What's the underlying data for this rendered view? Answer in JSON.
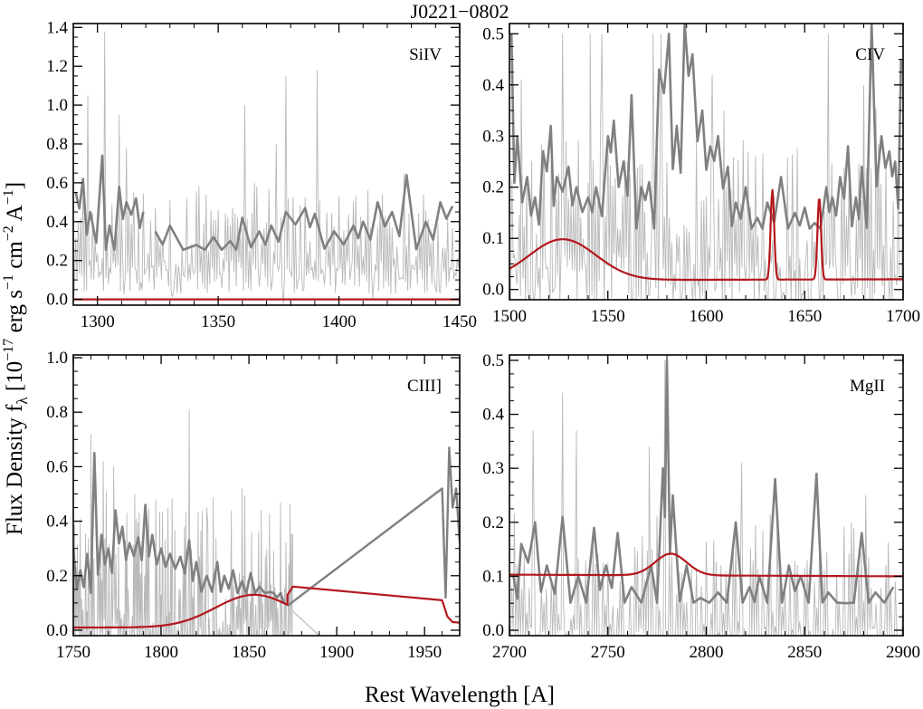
{
  "figure": {
    "title": "J0221−0802",
    "xlabel": "Rest Wavelength [A]",
    "ylabel": "Flux Density fλ [10⁻¹⁷ erg s⁻¹ cm⁻² A⁻¹]",
    "ylabel_parts": {
      "prefix": "Flux Density f",
      "lambda": "λ",
      "open": " [10",
      "e1": "−17",
      "erg": " erg s",
      "e2": "−1",
      "cm": " cm",
      "e3": "−2",
      "A": " A",
      "e4": "−1",
      "close": "]"
    }
  },
  "colors": {
    "raw_spectrum": "#b9b9b9",
    "smoothed_spectrum": "#808080",
    "model_fit": "#b3171c",
    "axes": "#000000"
  },
  "chart_data": [
    {
      "type": "line",
      "line_label": "SiIV",
      "xlim": [
        1290,
        1450
      ],
      "ylim": [
        -0.03,
        1.42
      ],
      "xticks": [
        1300,
        1350,
        1400,
        1450
      ],
      "yticks": [
        0.0,
        0.2,
        0.4,
        0.6,
        0.8,
        1.0,
        1.2,
        1.4
      ],
      "xtick_labels": [
        "1300",
        "1350",
        "1400",
        "1450"
      ],
      "ytick_labels": [
        "0.0",
        "0.2",
        "0.4",
        "0.6",
        "0.8",
        "1.0",
        "1.2",
        "1.4"
      ],
      "model": {
        "continuum": [
          [
            1290,
            0.0
          ],
          [
            1450,
            0.0
          ]
        ],
        "gaussians": []
      },
      "smoothed": {
        "baseline": 0.3,
        "peaks": [
          [
            1291,
            0.55
          ],
          [
            1294,
            0.62
          ],
          [
            1297,
            0.45
          ],
          [
            1302,
            0.74
          ],
          [
            1305,
            0.38
          ],
          [
            1309,
            0.58
          ],
          [
            1312,
            0.5
          ],
          [
            1316,
            0.52
          ],
          [
            1319,
            0.45
          ],
          [
            1324,
            0.35
          ],
          [
            1330,
            0.38
          ],
          [
            1341,
            0.28
          ],
          [
            1348,
            0.32
          ],
          [
            1355,
            0.3
          ],
          [
            1360,
            0.42
          ],
          [
            1367,
            0.35
          ],
          [
            1372,
            0.38
          ],
          [
            1378,
            0.45
          ],
          [
            1386,
            0.47
          ],
          [
            1390,
            0.44
          ],
          [
            1398,
            0.35
          ],
          [
            1406,
            0.38
          ],
          [
            1410,
            0.4
          ],
          [
            1416,
            0.5
          ],
          [
            1422,
            0.45
          ],
          [
            1428,
            0.64
          ],
          [
            1436,
            0.4
          ],
          [
            1442,
            0.5
          ],
          [
            1447,
            0.48
          ]
        ],
        "gaps": [
          [
            1320,
            1323
          ]
        ]
      },
      "raw": {
        "noise": 0.17,
        "spikes": [
          [
            1296,
            1.05
          ],
          [
            1303,
            1.38
          ],
          [
            1309,
            0.95
          ],
          [
            1312,
            0.78
          ],
          [
            1361,
            1.0
          ],
          [
            1374,
            0.8
          ],
          [
            1378,
            1.15
          ],
          [
            1391,
            1.18
          ],
          [
            1427,
            0.65
          ]
        ],
        "clip_low": -0.03
      }
    },
    {
      "type": "line",
      "line_label": "CIV",
      "xlim": [
        1500,
        1700
      ],
      "ylim": [
        -0.02,
        0.52
      ],
      "xticks": [
        1500,
        1550,
        1600,
        1650,
        1700
      ],
      "yticks": [
        0.0,
        0.1,
        0.2,
        0.3,
        0.4,
        0.5
      ],
      "xtick_labels": [
        "1500",
        "1550",
        "1600",
        "1650",
        "1700"
      ],
      "ytick_labels": [
        "0.0",
        "0.1",
        "0.2",
        "0.3",
        "0.4",
        "0.5"
      ],
      "model": {
        "continuum": [
          [
            1500,
            0.018
          ],
          [
            1700,
            0.02
          ]
        ],
        "gaussians": [
          [
            1527,
            0.08,
            17
          ],
          [
            1633.6,
            0.175,
            0.9
          ],
          [
            1657.4,
            0.16,
            0.9
          ]
        ]
      },
      "smoothed": {
        "baseline": 0.14,
        "peaks": [
          [
            1501,
            0.5
          ],
          [
            1504,
            0.3
          ],
          [
            1509,
            0.22
          ],
          [
            1513,
            0.18
          ],
          [
            1517,
            0.27
          ],
          [
            1521,
            0.32
          ],
          [
            1524,
            0.22
          ],
          [
            1530,
            0.24
          ],
          [
            1534,
            0.2
          ],
          [
            1540,
            0.18
          ],
          [
            1544,
            0.2
          ],
          [
            1550,
            0.3
          ],
          [
            1553,
            0.33
          ],
          [
            1558,
            0.25
          ],
          [
            1562,
            0.38
          ],
          [
            1567,
            0.2
          ],
          [
            1571,
            0.21
          ],
          [
            1576,
            0.43
          ],
          [
            1581,
            0.5
          ],
          [
            1585,
            0.32
          ],
          [
            1589,
            0.52
          ],
          [
            1593,
            0.46
          ],
          [
            1598,
            0.35
          ],
          [
            1602,
            0.28
          ],
          [
            1606,
            0.3
          ],
          [
            1611,
            0.24
          ],
          [
            1615,
            0.17
          ],
          [
            1620,
            0.2
          ],
          [
            1626,
            0.14
          ],
          [
            1631,
            0.17
          ],
          [
            1638,
            0.22
          ],
          [
            1645,
            0.15
          ],
          [
            1650,
            0.16
          ],
          [
            1655,
            0.13
          ],
          [
            1661,
            0.2
          ],
          [
            1664,
            0.18
          ],
          [
            1668,
            0.22
          ],
          [
            1672,
            0.28
          ],
          [
            1676,
            0.18
          ],
          [
            1679,
            0.24
          ],
          [
            1684,
            0.52
          ],
          [
            1689,
            0.3
          ],
          [
            1693,
            0.27
          ],
          [
            1696,
            0.25
          ],
          [
            1699,
            0.45
          ]
        ],
        "gaps": []
      },
      "raw": {
        "noise": 0.12,
        "spikes": [
          [
            1506,
            0.41
          ],
          [
            1527,
            0.5
          ],
          [
            1541,
            0.5
          ],
          [
            1547,
            0.5
          ],
          [
            1573,
            0.5
          ],
          [
            1577,
            0.5
          ],
          [
            1603,
            0.42
          ],
          [
            1609,
            0.35
          ],
          [
            1662,
            0.5
          ],
          [
            1680,
            0.4
          ]
        ],
        "clip_low": -0.02
      }
    },
    {
      "type": "line",
      "line_label": "CIII]",
      "xlim": [
        1750,
        1970
      ],
      "ylim": [
        -0.02,
        1.01
      ],
      "xticks": [
        1750,
        1800,
        1850,
        1900,
        1950
      ],
      "yticks": [
        0.0,
        0.2,
        0.4,
        0.6,
        0.8,
        1.0
      ],
      "xtick_labels": [
        "1750",
        "1800",
        "1850",
        "1900",
        "1950"
      ],
      "ytick_labels": [
        "0.0",
        "0.2",
        "0.4",
        "0.6",
        "0.8",
        "1.0"
      ],
      "model": {
        "continuum": [
          [
            1750,
            0.01
          ],
          [
            1970,
            0.01
          ]
        ],
        "gaussians": [
          [
            1853,
            0.12,
            22
          ]
        ],
        "polyline": [
          [
            1872,
            0.13
          ],
          [
            1875,
            0.16
          ],
          [
            1960,
            0.11
          ],
          [
            1963,
            0.05
          ],
          [
            1966,
            0.03
          ],
          [
            1970,
            0.028
          ]
        ]
      },
      "smoothed": {
        "baseline": 0.16,
        "peaks": [
          [
            1750,
            0.3
          ],
          [
            1754,
            0.22
          ],
          [
            1758,
            0.28
          ],
          [
            1762,
            0.65
          ],
          [
            1766,
            0.35
          ],
          [
            1770,
            0.3
          ],
          [
            1774,
            0.44
          ],
          [
            1778,
            0.38
          ],
          [
            1782,
            0.32
          ],
          [
            1787,
            0.34
          ],
          [
            1791,
            0.46
          ],
          [
            1795,
            0.35
          ],
          [
            1800,
            0.3
          ],
          [
            1805,
            0.28
          ],
          [
            1811,
            0.27
          ],
          [
            1816,
            0.33
          ],
          [
            1820,
            0.25
          ],
          [
            1826,
            0.2
          ],
          [
            1832,
            0.25
          ],
          [
            1836,
            0.2
          ],
          [
            1841,
            0.22
          ],
          [
            1846,
            0.18
          ],
          [
            1851,
            0.21
          ],
          [
            1856,
            0.16
          ],
          [
            1862,
            0.14
          ],
          [
            1866,
            0.12
          ],
          [
            1870,
            0.1
          ]
        ],
        "gaps": [],
        "extra_lines": [
          [
            [
              1872,
              0.09
            ],
            [
              1960,
              0.52
            ],
            [
              1962,
              0.12
            ],
            [
              1964,
              0.67
            ],
            [
              1966,
              0.45
            ],
            [
              1968,
              0.52
            ],
            [
              1970,
              0.32
            ]
          ]
        ]
      },
      "raw": {
        "noise": 0.2,
        "spikes": [
          [
            1760,
            0.72
          ],
          [
            1767,
            0.62
          ],
          [
            1773,
            0.6
          ],
          [
            1785,
            0.5
          ],
          [
            1797,
            0.48
          ],
          [
            1816,
            0.81
          ],
          [
            1826,
            0.45
          ],
          [
            1840,
            0.44
          ]
        ],
        "clip_low": -0.02,
        "end_x": 1875
      },
      "raw_line": [
        [
          1875,
          0.07
        ],
        [
          1890,
          -0.02
        ]
      ]
    },
    {
      "type": "line",
      "line_label": "MgII",
      "xlim": [
        2700,
        2900
      ],
      "ylim": [
        -0.01,
        0.51
      ],
      "xticks": [
        2700,
        2750,
        2800,
        2850,
        2900
      ],
      "yticks": [
        0.0,
        0.1,
        0.2,
        0.3,
        0.4,
        0.5
      ],
      "xtick_labels": [
        "2700",
        "2750",
        "2800",
        "2850",
        "2900"
      ],
      "ytick_labels": [
        "0.0",
        "0.1",
        "0.2",
        "0.3",
        "0.4",
        "0.5"
      ],
      "model": {
        "continuum": [
          [
            2700,
            0.103
          ],
          [
            2900,
            0.1
          ]
        ],
        "gaussians": [
          [
            2782,
            0.04,
            8
          ]
        ]
      },
      "smoothed": {
        "baseline": 0.06,
        "peaks": [
          [
            2702,
            0.1
          ],
          [
            2706,
            0.16
          ],
          [
            2713,
            0.2
          ],
          [
            2719,
            0.12
          ],
          [
            2727,
            0.21
          ],
          [
            2735,
            0.1
          ],
          [
            2743,
            0.19
          ],
          [
            2749,
            0.12
          ],
          [
            2755,
            0.18
          ],
          [
            2762,
            0.08
          ],
          [
            2772,
            0.12
          ],
          [
            2778,
            0.3
          ],
          [
            2780,
            0.5
          ],
          [
            2783,
            0.25
          ],
          [
            2790,
            0.12
          ],
          [
            2797,
            0.06
          ],
          [
            2806,
            0.07
          ],
          [
            2815,
            0.2
          ],
          [
            2822,
            0.08
          ],
          [
            2827,
            0.1
          ],
          [
            2835,
            0.28
          ],
          [
            2842,
            0.12
          ],
          [
            2848,
            0.1
          ],
          [
            2856,
            0.29
          ],
          [
            2862,
            0.07
          ],
          [
            2871,
            0.05
          ],
          [
            2879,
            0.18
          ],
          [
            2886,
            0.07
          ],
          [
            2895,
            0.08
          ]
        ],
        "gaps": []
      },
      "raw": {
        "noise": 0.09,
        "spikes": [
          [
            2712,
            0.37
          ],
          [
            2727,
            0.44
          ],
          [
            2734,
            0.37
          ],
          [
            2771,
            0.34
          ],
          [
            2779,
            0.5
          ],
          [
            2818,
            0.31
          ],
          [
            2836,
            0.22
          ],
          [
            2881,
            0.25
          ],
          [
            2896,
            0.09
          ]
        ],
        "clip_low": -0.01
      }
    }
  ]
}
